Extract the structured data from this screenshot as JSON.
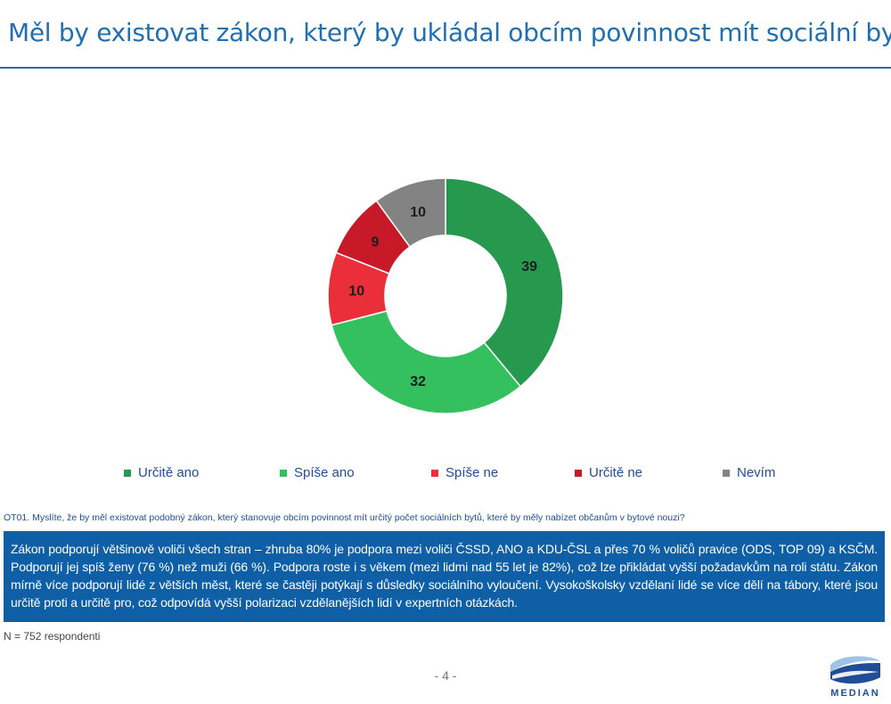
{
  "header": {
    "title": "Měl by existovat zákon, který by ukládal obcím povinnost mít sociální byt?"
  },
  "chart_data": {
    "type": "pie",
    "donut": true,
    "categories": [
      "Určitě ano",
      "Spíše ano",
      "Spíše ne",
      "Určitě ne",
      "Nevím"
    ],
    "values": [
      39,
      32,
      10,
      9,
      10
    ],
    "colors": [
      "#27994f",
      "#35c060",
      "#ea2f3b",
      "#c81928",
      "#838383"
    ],
    "data_labels": [
      "39",
      "32",
      "10",
      "9",
      "10"
    ],
    "title": "",
    "legend_position": "bottom"
  },
  "legend": {
    "items": [
      {
        "label": "Určitě ano",
        "color": "#27994f"
      },
      {
        "label": "Spíše ano",
        "color": "#35c060"
      },
      {
        "label": "Spíše ne",
        "color": "#ea2f3b"
      },
      {
        "label": "Určitě ne",
        "color": "#c81928"
      },
      {
        "label": "Nevím",
        "color": "#838383"
      }
    ]
  },
  "question": "OT01. Myslíte, že by měl existovat podobný zákon, který stanovuje obcím povinnost mít určitý počet sociálních bytů, které by měly nabízet občanům v bytové nouzi?",
  "summary": "Zákon podporují většinově voliči všech stran – zhruba 80% je podpora mezi voliči ČSSD, ANO a KDU-ČSL a přes 70 % voličů pravice (ODS, TOP 09) a KSČM. Podporují jej spíš ženy (76 %) než muži (66 %). Podpora roste i s věkem (mezi lidmi nad 55 let je 82%), což lze přikládat vyšší požadavkům na roli státu. Zákon mírně více podporují lidé z větších měst, které se častěji potýkají s důsledky sociálního vyloučení. Vysokoškolsky vzdělaní lidé se více dělí na tábory, které jsou určitě proti a určitě pro, což odpovídá vyšší polarizaci vzdělanějších lidí v expertních otázkách.",
  "sample_note": "N = 752 respondenti",
  "page_number": "- 4 -",
  "logo": {
    "name": "MEDIAN",
    "colors": [
      "#1f4e96",
      "#9fc3e6"
    ]
  }
}
